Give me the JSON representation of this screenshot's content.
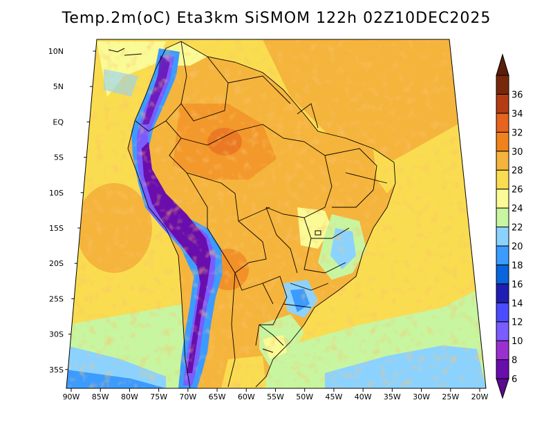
{
  "title": "Temp.2m(oC) Eta3km SiSMOM 122h 02Z10DEC2025",
  "map": {
    "variable": "2 m air temperature",
    "units": "oC",
    "region": "South America",
    "lat_labels": [
      "10N",
      "5N",
      "EQ",
      "5S",
      "10S",
      "15S",
      "20S",
      "25S",
      "30S",
      "35S"
    ],
    "lon_labels": [
      "90W",
      "85W",
      "80W",
      "75W",
      "70W",
      "65W",
      "60W",
      "55W",
      "50W",
      "45W",
      "40W",
      "35W",
      "30W",
      "25W",
      "20W"
    ]
  },
  "colorbar": {
    "levels": [
      "6",
      "8",
      "10",
      "12",
      "14",
      "16",
      "18",
      "20",
      "22",
      "24",
      "26",
      "28",
      "30",
      "32",
      "34",
      "36"
    ],
    "colors": [
      "#6a0dad",
      "#9b30d0",
      "#7a5cff",
      "#4b4bff",
      "#1e1eb4",
      "#0a64dc",
      "#3c9bff",
      "#8cd2ff",
      "#c8f5a0",
      "#fafa96",
      "#fadc50",
      "#f5b43c",
      "#f0821e",
      "#e6641e",
      "#b43c14",
      "#78280a"
    ],
    "underflow_color": "#5a0a8c",
    "overflow_color": "#5a1e0a"
  }
}
